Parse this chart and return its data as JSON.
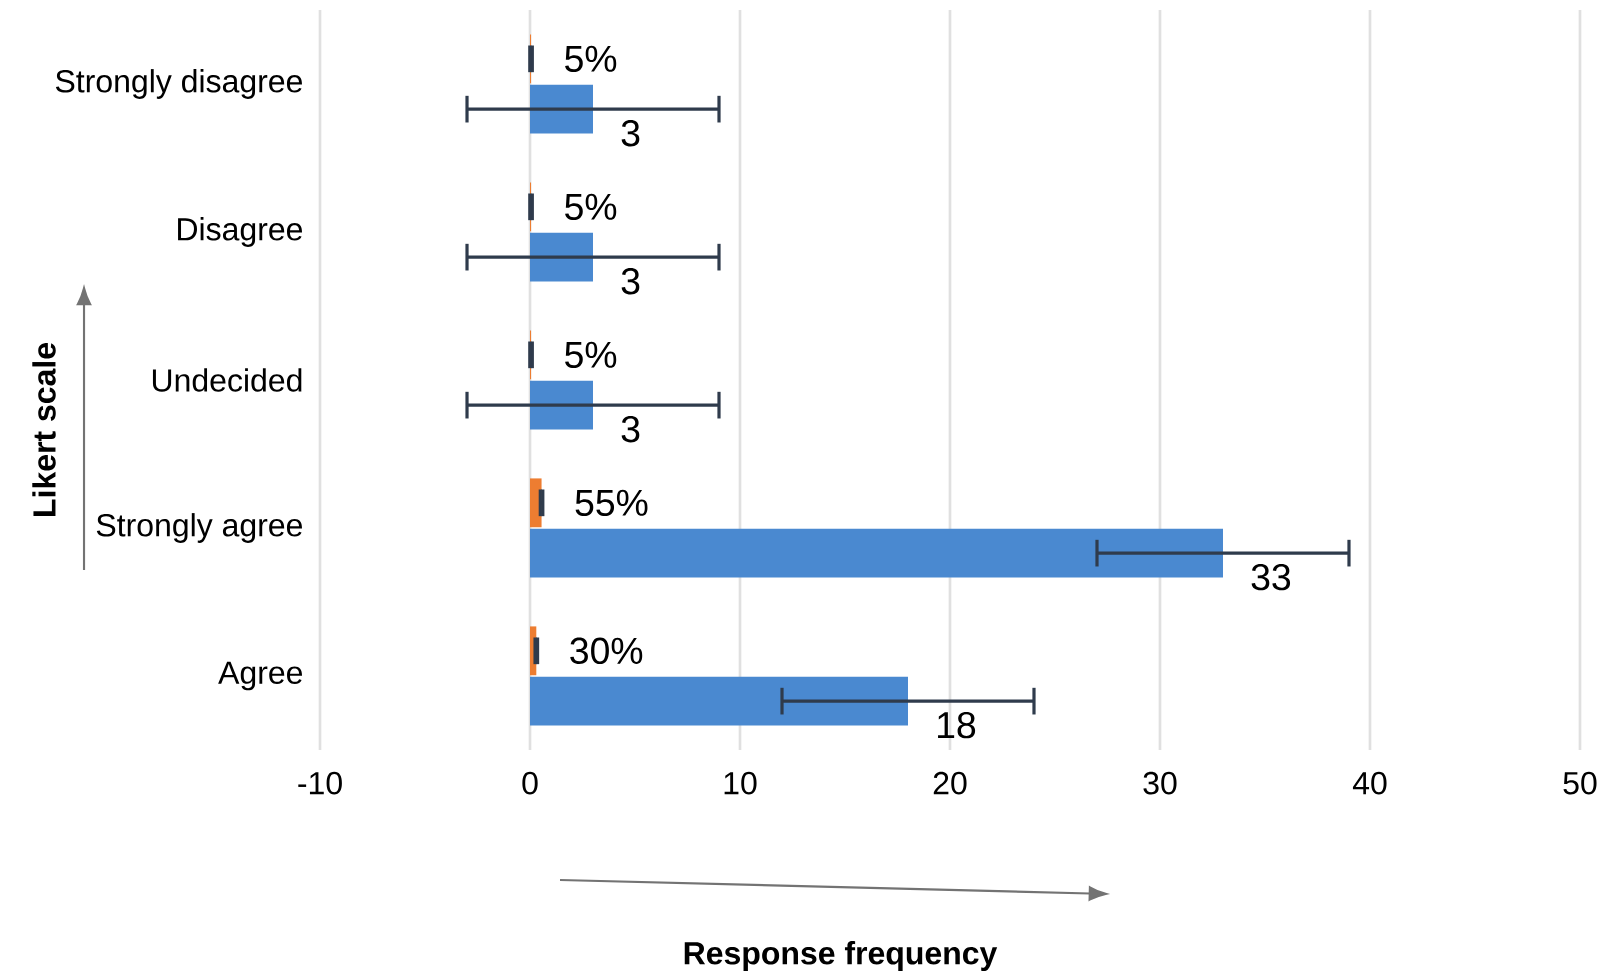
{
  "chart_data": {
    "type": "bar",
    "orientation": "horizontal",
    "xlabel": "Response frequency",
    "ylabel": "Likert scale",
    "categories": [
      "Strongly disagree",
      "Disagree",
      "Undecided",
      "Strongly agree",
      "Agree"
    ],
    "series": [
      {
        "color": "#4a89d0",
        "values": [
          3,
          3,
          3,
          33,
          18
        ],
        "errors": [
          6,
          6,
          6,
          6,
          6
        ],
        "value_labels": [
          "3",
          "3",
          "3",
          "33",
          "18"
        ]
      },
      {
        "color": "#ed7d31",
        "values": [
          0.05,
          0.05,
          0.05,
          0.55,
          0.3
        ],
        "errors": [
          0.06,
          0.06,
          0.06,
          0.06,
          0.06
        ],
        "value_labels": [
          "5%",
          "5%",
          "5%",
          "55%",
          "30%"
        ]
      }
    ],
    "xlim": [
      -10,
      50
    ],
    "xticks": [
      -10,
      0,
      10,
      20,
      30,
      40,
      50
    ],
    "grid": "x"
  }
}
